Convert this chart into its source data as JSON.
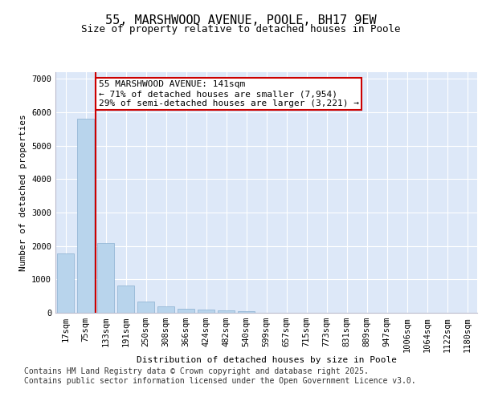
{
  "title1": "55, MARSHWOOD AVENUE, POOLE, BH17 9EW",
  "title2": "Size of property relative to detached houses in Poole",
  "xlabel": "Distribution of detached houses by size in Poole",
  "ylabel": "Number of detached properties",
  "categories": [
    "17sqm",
    "75sqm",
    "133sqm",
    "191sqm",
    "250sqm",
    "308sqm",
    "366sqm",
    "424sqm",
    "482sqm",
    "540sqm",
    "599sqm",
    "657sqm",
    "715sqm",
    "773sqm",
    "831sqm",
    "889sqm",
    "947sqm",
    "1006sqm",
    "1064sqm",
    "1122sqm",
    "1180sqm"
  ],
  "values": [
    1780,
    5820,
    2080,
    810,
    340,
    195,
    115,
    90,
    70,
    55,
    0,
    0,
    0,
    0,
    0,
    0,
    0,
    0,
    0,
    0,
    0
  ],
  "bar_color": "#b8d4ec",
  "bar_edge_color": "#8ab0d0",
  "vline_color": "#cc0000",
  "vline_x": 1.5,
  "annotation_line1": "55 MARSHWOOD AVENUE: 141sqm",
  "annotation_line2": "← 71% of detached houses are smaller (7,954)",
  "annotation_line3": "29% of semi-detached houses are larger (3,221) →",
  "annotation_box_color": "#ffffff",
  "annotation_box_edge_color": "#cc0000",
  "ylim": [
    0,
    7200
  ],
  "yticks": [
    0,
    1000,
    2000,
    3000,
    4000,
    5000,
    6000,
    7000
  ],
  "background_color": "#dde8f8",
  "footer_line1": "Contains HM Land Registry data © Crown copyright and database right 2025.",
  "footer_line2": "Contains public sector information licensed under the Open Government Licence v3.0.",
  "title1_fontsize": 11,
  "title2_fontsize": 9,
  "axis_label_fontsize": 8,
  "tick_fontsize": 7.5,
  "annotation_fontsize": 8,
  "footer_fontsize": 7
}
